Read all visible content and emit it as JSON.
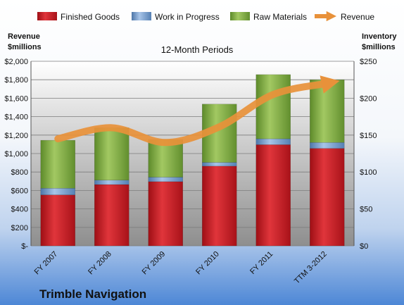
{
  "chart_data": {
    "type": "bar",
    "stacked": true,
    "subtitle": "12-Month Periods",
    "categories": [
      "FY 2007",
      "FY 2008",
      "FY 2009",
      "FY 2010",
      "FY 2011",
      "TTM 3-2012"
    ],
    "series": [
      {
        "name": "Finished Goods",
        "axis": "right",
        "color": "#d42027",
        "values": [
          69,
          83,
          87,
          108,
          137,
          132
        ]
      },
      {
        "name": "Work in Progress",
        "axis": "right",
        "color": "#7ea6d4",
        "values": [
          9,
          6,
          6,
          5,
          8,
          8
        ]
      },
      {
        "name": "Raw Materials",
        "axis": "right",
        "color": "#8fb848",
        "values": [
          65,
          71,
          51,
          79,
          87,
          85
        ]
      }
    ],
    "line_series": {
      "name": "Revenue",
      "axis": "left",
      "color": "#e8913a",
      "values": [
        1160,
        1280,
        1120,
        1290,
        1640,
        1760
      ]
    },
    "left_axis": {
      "label_line1": "Revenue",
      "label_line2": "$millions",
      "ylim": [
        0,
        2000
      ],
      "ticks": [
        0,
        200,
        400,
        600,
        800,
        1000,
        1200,
        1400,
        1600,
        1800,
        2000
      ],
      "tick_labels": [
        "$-",
        "$200",
        "$400",
        "$600",
        "$800",
        "$1,000",
        "$1,200",
        "$1,400",
        "$1,600",
        "$1,800",
        "$2,000"
      ]
    },
    "right_axis": {
      "label_line1": "Inventory",
      "label_line2": "$millions",
      "ylim": [
        0,
        250
      ],
      "ticks": [
        0,
        50,
        100,
        150,
        200,
        250
      ],
      "tick_labels": [
        "$0",
        "$50",
        "$100",
        "$150",
        "$200",
        "$250"
      ]
    },
    "grid": true,
    "legend_position": "top",
    "company": "Trimble Navigation"
  }
}
